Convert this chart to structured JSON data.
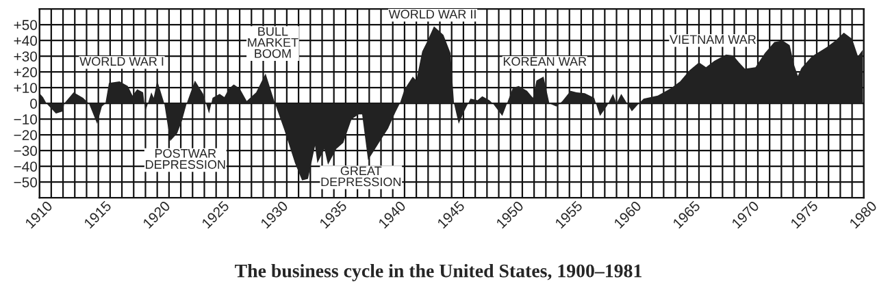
{
  "chart_data": {
    "type": "area",
    "title": "The business cycle in the United States, 1900–1981",
    "x": [
      1910.0,
      1910.3,
      1910.6,
      1911.4,
      1912.0,
      1912.1,
      1912.9,
      1913.7,
      1914.2,
      1914.9,
      1915.3,
      1915.6,
      1915.9,
      1916.8,
      1917.5,
      1917.9,
      1918.3,
      1918.8,
      1919.0,
      1919.5,
      1919.7,
      1920.0,
      1920.6,
      1921.1,
      1921.7,
      1922.1,
      1922.5,
      1923.2,
      1923.9,
      1924.4,
      1924.7,
      1925.3,
      1925.7,
      1926.1,
      1926.5,
      1927.0,
      1927.6,
      1928.4,
      1929.2,
      1929.6,
      1930.0,
      1930.8,
      1931.7,
      1932.3,
      1932.8,
      1933.4,
      1933.6,
      1934.2,
      1934.5,
      1935.2,
      1935.8,
      1936.5,
      1937.1,
      1937.4,
      1937.9,
      1938.5,
      1939.0,
      1939.6,
      1940.2,
      1940.6,
      1941.0,
      1941.7,
      1942.0,
      1942.5,
      1942.9,
      1943.5,
      1944.3,
      1944.9,
      1945.2,
      1945.6,
      1946.1,
      1946.4,
      1946.6,
      1947.2,
      1947.6,
      1948.2,
      1948.5,
      1949.3,
      1949.7,
      1950.2,
      1950.7,
      1951.4,
      1951.9,
      1952.2,
      1952.8,
      1953.3,
      1953.9,
      1954.4,
      1955.1,
      1955.6,
      1956.3,
      1957.1,
      1957.6,
      1958.2,
      1958.7,
      1959.0,
      1959.4,
      1959.9,
      1960.3,
      1960.9,
      1961.3,
      1962.5,
      1963.6,
      1964.4,
      1965.2,
      1966.0,
      1966.6,
      1967.3,
      1968.3,
      1968.9,
      1969.4,
      1969.9,
      1970.8,
      1971.6,
      1972.4,
      1973.1,
      1973.7,
      1974.1,
      1974.4,
      1974.7,
      1975.6,
      1976.8,
      1977.6,
      1978.3,
      1979.0,
      1979.5,
      1979.9
    ],
    "series": [
      {
        "color": "#222222",
        "values": [
          6.5,
          4,
          0,
          -6.5,
          -5,
          0,
          7,
          3.5,
          0,
          -13,
          -2,
          0,
          13,
          14,
          11,
          5,
          9,
          7,
          -5,
          7,
          3.5,
          14.5,
          0,
          -24,
          -19,
          -11,
          0,
          14.5,
          6,
          -6.5,
          3.5,
          6,
          4,
          9.5,
          12,
          9.5,
          1.5,
          7,
          19,
          9.5,
          0,
          -17,
          -38,
          -49,
          -48,
          -27,
          -38,
          -29,
          -39,
          -29,
          -25,
          -10,
          -7,
          -7,
          -36,
          -29,
          -23,
          -16,
          -6,
          0,
          9,
          17,
          14.5,
          33,
          39,
          49,
          43.5,
          32,
          0,
          -13,
          -4.5,
          0,
          3,
          2,
          4.5,
          2,
          0,
          -8,
          0,
          10,
          11,
          8,
          3.5,
          14.5,
          17,
          0,
          -2,
          1.5,
          8,
          7,
          6.5,
          3.5,
          -8,
          -1.5,
          6,
          0,
          6,
          0,
          -5,
          0,
          3,
          5,
          9.5,
          14,
          21,
          26,
          23,
          27,
          31,
          30.5,
          26,
          22,
          23,
          32,
          39,
          40,
          37,
          24,
          17.5,
          22.5,
          30,
          35.5,
          40,
          45,
          41,
          30,
          34
        ]
      }
    ],
    "xlim": [
      1910,
      1980
    ],
    "xticks": [
      1910,
      {
        "value": 1911,
        "label": null
      },
      {
        "value": 1912,
        "label": null
      },
      {
        "value": 1913,
        "label": null
      },
      {
        "value": 1914,
        "label": null
      },
      1915,
      {
        "value": 1916,
        "label": null
      },
      {
        "value": 1917,
        "label": null
      },
      {
        "value": 1918,
        "label": null
      },
      {
        "value": 1919,
        "label": null
      },
      1920,
      {
        "value": 1921,
        "label": null
      },
      {
        "value": 1922,
        "label": null
      },
      {
        "value": 1923,
        "label": null
      },
      {
        "value": 1924,
        "label": null
      },
      1925,
      {
        "value": 1926,
        "label": null
      },
      {
        "value": 1927,
        "label": null
      },
      {
        "value": 1928,
        "label": null
      },
      {
        "value": 1929,
        "label": null
      },
      1930,
      {
        "value": 1931,
        "label": null
      },
      {
        "value": 1932,
        "label": null
      },
      {
        "value": 1933,
        "label": null
      },
      {
        "value": 1934,
        "label": null
      },
      1935,
      {
        "value": 1936,
        "label": null
      },
      {
        "value": 1937,
        "label": null
      },
      {
        "value": 1938,
        "label": null
      },
      {
        "value": 1939,
        "label": null
      },
      1940,
      {
        "value": 1941,
        "label": null
      },
      {
        "value": 1942,
        "label": null
      },
      {
        "value": 1943,
        "label": null
      },
      {
        "value": 1944,
        "label": null
      },
      1945,
      {
        "value": 1946,
        "label": null
      },
      {
        "value": 1947,
        "label": null
      },
      {
        "value": 1948,
        "label": null
      },
      {
        "value": 1949,
        "label": null
      },
      1950,
      {
        "value": 1951,
        "label": null
      },
      {
        "value": 1952,
        "label": null
      },
      {
        "value": 1953,
        "label": null
      },
      {
        "value": 1954,
        "label": null
      },
      1955,
      {
        "value": 1956,
        "label": null
      },
      {
        "value": 1957,
        "label": null
      },
      {
        "value": 1958,
        "label": null
      },
      {
        "value": 1959,
        "label": null
      },
      1960,
      {
        "value": 1961,
        "label": null
      },
      {
        "value": 1962,
        "label": null
      },
      {
        "value": 1963,
        "label": null
      },
      {
        "value": 1964,
        "label": null
      },
      1965,
      {
        "value": 1966,
        "label": null
      },
      {
        "value": 1967,
        "label": null
      },
      {
        "value": 1968,
        "label": null
      },
      {
        "value": 1969,
        "label": null
      },
      1970,
      {
        "value": 1971,
        "label": null
      },
      {
        "value": 1972,
        "label": null
      },
      {
        "value": 1973,
        "label": null
      },
      {
        "value": 1974,
        "label": null
      },
      1975,
      {
        "value": 1976,
        "label": null
      },
      {
        "value": 1977,
        "label": null
      },
      {
        "value": 1978,
        "label": null
      },
      {
        "value": 1979,
        "label": null
      },
      1980
    ],
    "ylim": [
      -60,
      60
    ],
    "yticks": [
      {
        "value": -50,
        "label": "−50"
      },
      {
        "value": -40,
        "label": "−40"
      },
      {
        "value": -30,
        "label": "−30"
      },
      {
        "value": -20,
        "label": "−20"
      },
      {
        "value": -10,
        "label": "−10"
      },
      0,
      {
        "value": 10,
        "label": "+10"
      },
      {
        "value": 20,
        "label": "+20"
      },
      {
        "value": 30,
        "label": "+30"
      },
      {
        "value": 40,
        "label": "+40"
      },
      {
        "value": 50,
        "label": "+50"
      }
    ],
    "grid": true,
    "annotations": [
      "WORLD WAR I",
      "BULL\nMARKET\nBOOM",
      "POSTWAR\nDEPRESSION",
      "GREAT\nDEPRESSION",
      "WORLD WAR II",
      "KOREAN WAR",
      "VIETNAM WAR"
    ]
  }
}
